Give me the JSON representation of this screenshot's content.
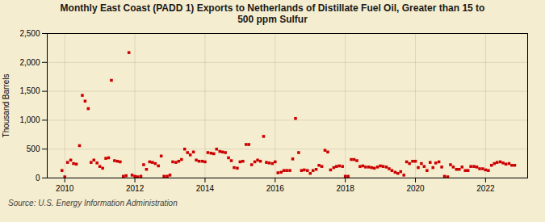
{
  "chart_data": {
    "type": "scatter",
    "title": "Monthly East Coast (PADD 1) Exports to Netherlands of Distillate Fuel Oil, Greater than 15 to\n500 ppm Sulfur",
    "ylabel": "Thousand Barrels",
    "source": "Source: U.S. Energy Information Administration",
    "color": "#cc0000",
    "marker": "square",
    "grid": true,
    "xlim": [
      2009.5,
      2023.2
    ],
    "ylim": [
      0,
      2500
    ],
    "xticks": [
      2010,
      2012,
      2014,
      2016,
      2018,
      2020,
      2022
    ],
    "yticks": [
      0,
      500,
      {
        "value": 1000,
        "label": "1,000"
      },
      {
        "value": 1500,
        "label": "1,500"
      },
      {
        "value": 2000,
        "label": "2,000"
      },
      {
        "value": 2500,
        "label": "2,500"
      }
    ],
    "x": [
      2009.92,
      2010.0,
      2010.08,
      2010.17,
      2010.25,
      2010.33,
      2010.42,
      2010.5,
      2010.58,
      2010.67,
      2010.75,
      2010.83,
      2010.92,
      2011.0,
      2011.08,
      2011.17,
      2011.25,
      2011.33,
      2011.42,
      2011.5,
      2011.58,
      2011.67,
      2011.75,
      2011.83,
      2011.92,
      2012.0,
      2012.08,
      2012.17,
      2012.25,
      2012.33,
      2012.42,
      2012.5,
      2012.58,
      2012.67,
      2012.75,
      2012.83,
      2012.92,
      2013.0,
      2013.08,
      2013.17,
      2013.25,
      2013.33,
      2013.42,
      2013.5,
      2013.58,
      2013.67,
      2013.75,
      2013.83,
      2013.92,
      2014.0,
      2014.08,
      2014.17,
      2014.25,
      2014.33,
      2014.42,
      2014.5,
      2014.58,
      2014.67,
      2014.75,
      2014.83,
      2014.92,
      2015.0,
      2015.08,
      2015.17,
      2015.25,
      2015.33,
      2015.42,
      2015.5,
      2015.58,
      2015.67,
      2015.75,
      2015.83,
      2015.92,
      2016.0,
      2016.08,
      2016.17,
      2016.25,
      2016.33,
      2016.42,
      2016.5,
      2016.58,
      2016.67,
      2016.75,
      2016.83,
      2016.92,
      2017.0,
      2017.08,
      2017.17,
      2017.25,
      2017.33,
      2017.42,
      2017.5,
      2017.58,
      2017.67,
      2017.75,
      2017.83,
      2017.92,
      2018.0,
      2018.08,
      2018.17,
      2018.25,
      2018.33,
      2018.42,
      2018.5,
      2018.58,
      2018.67,
      2018.75,
      2018.83,
      2018.92,
      2019.0,
      2019.08,
      2019.17,
      2019.25,
      2019.33,
      2019.42,
      2019.5,
      2019.58,
      2019.67,
      2019.75,
      2019.83,
      2019.92,
      2020.0,
      2020.08,
      2020.17,
      2020.25,
      2020.33,
      2020.42,
      2020.5,
      2020.58,
      2020.67,
      2020.75,
      2020.83,
      2020.92,
      2021.0,
      2021.08,
      2021.17,
      2021.25,
      2021.33,
      2021.42,
      2021.5,
      2021.58,
      2021.67,
      2021.75,
      2021.83,
      2021.92,
      2022.0,
      2022.08,
      2022.17,
      2022.25,
      2022.33,
      2022.42,
      2022.5,
      2022.58,
      2022.67,
      2022.75,
      2022.83
    ],
    "values": [
      130,
      20,
      270,
      310,
      250,
      240,
      560,
      1430,
      1330,
      1200,
      270,
      310,
      260,
      200,
      170,
      340,
      350,
      1690,
      300,
      290,
      280,
      30,
      40,
      2170,
      50,
      30,
      20,
      30,
      230,
      150,
      280,
      270,
      250,
      210,
      380,
      30,
      30,
      50,
      280,
      270,
      290,
      320,
      500,
      440,
      400,
      450,
      310,
      290,
      290,
      280,
      440,
      430,
      420,
      500,
      460,
      450,
      440,
      350,
      300,
      180,
      170,
      280,
      290,
      580,
      580,
      230,
      280,
      310,
      290,
      720,
      270,
      260,
      250,
      280,
      90,
      100,
      130,
      130,
      130,
      330,
      1030,
      440,
      130,
      140,
      130,
      80,
      130,
      150,
      220,
      200,
      480,
      450,
      140,
      180,
      200,
      210,
      200,
      30,
      30,
      320,
      320,
      300,
      200,
      210,
      190,
      190,
      180,
      170,
      190,
      210,
      200,
      190,
      160,
      130,
      100,
      80,
      110,
      50,
      280,
      250,
      290,
      290,
      180,
      250,
      200,
      130,
      270,
      180,
      260,
      280,
      190,
      30,
      20,
      230,
      190,
      150,
      150,
      190,
      130,
      130,
      200,
      200,
      190,
      160,
      160,
      140,
      130,
      220,
      250,
      270,
      280,
      260,
      240,
      250,
      220,
      220
    ]
  }
}
